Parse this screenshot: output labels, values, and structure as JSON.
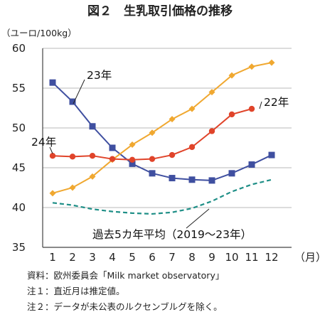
{
  "chart_data": {
    "type": "line",
    "title": "図２　生乳取引価格の推移",
    "ylabel": "（ユーロ/100kg）",
    "xlabel": "（月）",
    "categories": [
      "1",
      "2",
      "3",
      "4",
      "5",
      "6",
      "7",
      "8",
      "9",
      "10",
      "11",
      "12"
    ],
    "ylim": [
      35,
      60
    ],
    "yticks": [
      35,
      40,
      45,
      50,
      55,
      60
    ],
    "grid": true,
    "series": [
      {
        "name": "23年",
        "color": "#3f4fa0",
        "marker": "square",
        "dash": false,
        "values": [
          55.7,
          53.3,
          50.2,
          47.5,
          45.5,
          44.3,
          43.7,
          43.5,
          43.4,
          44.3,
          45.4,
          46.6
        ]
      },
      {
        "name": "22年",
        "color": "#f0a830",
        "marker": "diamond",
        "dash": false,
        "values": [
          41.8,
          42.5,
          43.9,
          46.0,
          47.9,
          49.4,
          51.1,
          52.4,
          54.5,
          56.6,
          57.7,
          58.2
        ]
      },
      {
        "name": "24年",
        "color": "#e0442a",
        "marker": "circle",
        "dash": false,
        "values": [
          46.5,
          46.4,
          46.5,
          46.1,
          46.0,
          46.1,
          46.6,
          47.6,
          49.6,
          51.7,
          52.4,
          null
        ]
      },
      {
        "name": "過去5カ年平均（2019～23年）",
        "color": "#1f8f87",
        "marker": "none",
        "dash": true,
        "values": [
          40.6,
          40.3,
          39.8,
          39.5,
          39.3,
          39.2,
          39.4,
          39.9,
          40.8,
          42.0,
          42.9,
          43.5
        ]
      }
    ]
  },
  "notes": [
    "資料：欧州委員会「Milk market observatory」",
    "注１：直近月は推定値。",
    "注２：データが未公表のルクセンブルグを除く。"
  ]
}
